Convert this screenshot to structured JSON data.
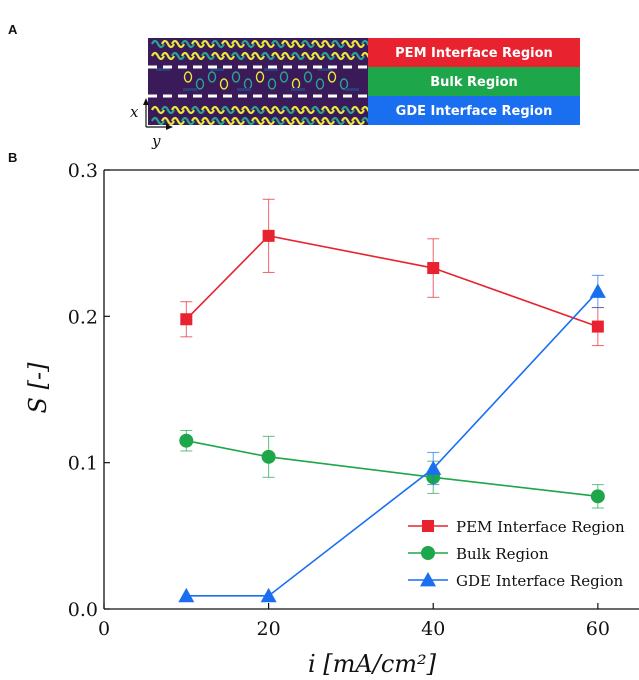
{
  "panel_a": {
    "letter": "A",
    "regions": [
      {
        "label": "PEM Interface Region",
        "color": "#e8222e"
      },
      {
        "label": "Bulk Region",
        "color": "#1ea64b"
      },
      {
        "label": "GDE Interface Region",
        "color": "#1a6ff0"
      }
    ],
    "axis_x": "x",
    "axis_y": "y",
    "image_colors": {
      "background": "#3b1a5a",
      "bright": "#e6e83a",
      "mid": "#27a58f",
      "dark": "#2c3e7a"
    }
  },
  "panel_b": {
    "letter": "B"
  },
  "chart_data": {
    "type": "line",
    "xlabel": "i [mA/cm²]",
    "ylabel": "S [-]",
    "xlim": [
      0,
      65
    ],
    "ylim": [
      0,
      0.3
    ],
    "xticks": [
      "0",
      "20",
      "40",
      "60"
    ],
    "yticks": [
      "0.0",
      "0.1",
      "0.2",
      "0.3"
    ],
    "legend_position": "bottom-right",
    "grid": false,
    "series": [
      {
        "name": "PEM Interface Region",
        "color": "#e8222e",
        "marker": "square",
        "x": [
          10,
          20,
          40,
          60
        ],
        "y": [
          0.198,
          0.255,
          0.233,
          0.193
        ],
        "err": [
          0.012,
          0.025,
          0.02,
          0.013
        ]
      },
      {
        "name": "Bulk Region",
        "color": "#1ea64b",
        "marker": "circle",
        "x": [
          10,
          20,
          40,
          60
        ],
        "y": [
          0.115,
          0.104,
          0.09,
          0.077
        ],
        "err": [
          0.007,
          0.014,
          0.011,
          0.008
        ]
      },
      {
        "name": "GDE Interface Region",
        "color": "#1a6ff0",
        "marker": "triangle",
        "x": [
          10,
          20,
          40,
          60
        ],
        "y": [
          0.009,
          0.009,
          0.096,
          0.217
        ],
        "err": [
          0,
          0,
          0.011,
          0.011
        ]
      }
    ]
  }
}
